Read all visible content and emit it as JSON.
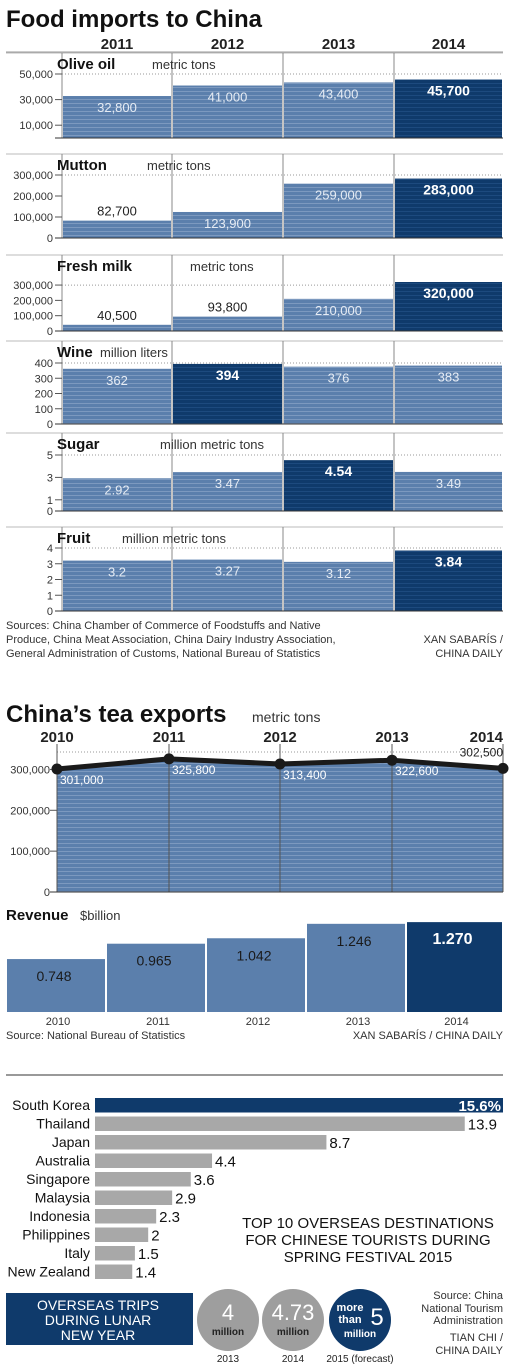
{
  "food": {
    "title": "Food imports to China",
    "years": [
      "2011",
      "2012",
      "2013",
      "2014"
    ],
    "sources": "Sources: China Chamber of Commerce of Foodstuffs and Native Produce, China Meat Association, China Dairy Industry Association, General Administration of Customs, National Bureau of Statistics",
    "credit": "XAN SABARÍS / CHINA DAILY"
  },
  "tea": {
    "title": "China’s tea exports",
    "unit": "metric tons",
    "revenue_title": "Revenue",
    "revenue_unit": "$billion",
    "source": "Source: National Bureau of Statistics",
    "credit": "XAN SABARÍS / CHINA DAILY"
  },
  "tourism": {
    "caption": "TOP 10 OVERSEAS DESTINATIONS FOR CHINESE TOURISTS DURING SPRING FESTIVAL 2015",
    "trips_title": "OVERSEAS TRIPS DURING LUNAR NEW YEAR",
    "circles": [
      {
        "value": "4",
        "unit": "million",
        "year": "2013"
      },
      {
        "value": "4.73",
        "unit": "million",
        "year": "2014"
      },
      {
        "prefix": "more than",
        "value": "5",
        "unit": "million",
        "year": "2015 (forecast)"
      }
    ],
    "source": "Source: China National Tourism Administration",
    "credit": "TIAN CHI / CHINA DAILY"
  },
  "colors": {
    "bar": "#5b7fac",
    "highlight": "#0f3a6b",
    "grey_bar": "#a8a8a8",
    "dark_line": "#1a1a1a"
  },
  "chart_data": [
    {
      "type": "bar",
      "title": "Olive oil",
      "unit": "metric tons",
      "categories": [
        "2011",
        "2012",
        "2013",
        "2014"
      ],
      "values": [
        32800,
        41000,
        43400,
        45700
      ],
      "labels": [
        "32,800",
        "41,000",
        "43,400",
        "45,700"
      ],
      "yticks": [
        10000,
        30000,
        50000
      ],
      "ytick_labels": [
        "10,000",
        "30,000",
        "50,000"
      ],
      "ylim": [
        0,
        50000
      ],
      "highlight": 3
    },
    {
      "type": "bar",
      "title": "Mutton",
      "unit": "metric tons",
      "categories": [
        "2011",
        "2012",
        "2013",
        "2014"
      ],
      "values": [
        82700,
        123900,
        259000,
        283000
      ],
      "labels": [
        "82,700",
        "123,900",
        "259,000",
        "283,000"
      ],
      "yticks": [
        0,
        100000,
        200000,
        300000
      ],
      "ytick_labels": [
        "0",
        "100,000",
        "200,000",
        "300,000"
      ],
      "ylim": [
        0,
        300000
      ],
      "highlight": 3
    },
    {
      "type": "bar",
      "title": "Fresh milk",
      "unit": "metric tons",
      "categories": [
        "2011",
        "2012",
        "2013",
        "2014"
      ],
      "values": [
        40500,
        93800,
        210000,
        320000
      ],
      "labels": [
        "40,500",
        "93,800",
        "210,000",
        "320,000"
      ],
      "yticks": [
        0,
        100000,
        200000,
        300000
      ],
      "ytick_labels": [
        "0",
        "100,000",
        "200,000",
        "300,000"
      ],
      "ylim": [
        0,
        320000
      ],
      "highlight": 3
    },
    {
      "type": "bar",
      "title": "Wine",
      "unit": "million liters",
      "categories": [
        "2011",
        "2012",
        "2013",
        "2014"
      ],
      "values": [
        362,
        394,
        376,
        383
      ],
      "labels": [
        "362",
        "394",
        "376",
        "383"
      ],
      "yticks": [
        0,
        100,
        200,
        300,
        400
      ],
      "ytick_labels": [
        "0",
        "100",
        "200",
        "300",
        "400"
      ],
      "ylim": [
        0,
        400
      ],
      "highlight": 1
    },
    {
      "type": "bar",
      "title": "Sugar",
      "unit": "million metric tons",
      "categories": [
        "2011",
        "2012",
        "2013",
        "2014"
      ],
      "values": [
        2.92,
        3.47,
        4.54,
        3.49
      ],
      "labels": [
        "2.92",
        "3.47",
        "4.54",
        "3.49"
      ],
      "yticks": [
        0,
        1,
        3,
        5
      ],
      "ytick_labels": [
        "0",
        "1",
        "3",
        "5"
      ],
      "ylim": [
        0,
        5
      ],
      "highlight": 2
    },
    {
      "type": "bar",
      "title": "Fruit",
      "unit": "million metric tons",
      "categories": [
        "2011",
        "2012",
        "2013",
        "2014"
      ],
      "values": [
        3.2,
        3.27,
        3.12,
        3.84
      ],
      "labels": [
        "3.2",
        "3.27",
        "3.12",
        "3.84"
      ],
      "yticks": [
        0,
        1,
        2,
        3,
        4
      ],
      "ytick_labels": [
        "0",
        "1",
        "2",
        "3",
        "4"
      ],
      "ylim": [
        0,
        4
      ],
      "highlight": 3
    },
    {
      "type": "area",
      "title": "China’s tea exports",
      "unit": "metric tons",
      "x": [
        "2010",
        "2011",
        "2012",
        "2013",
        "2014"
      ],
      "values": [
        301000,
        325800,
        313400,
        322600,
        302500
      ],
      "labels": [
        "301,000",
        "325,800",
        "313,400",
        "322,600",
        "302,500"
      ],
      "yticks": [
        0,
        100000,
        200000,
        300000
      ],
      "ytick_labels": [
        "0",
        "100,000",
        "200,000",
        "300,000"
      ],
      "ylim": [
        0,
        350000
      ]
    },
    {
      "type": "bar",
      "title": "Revenue",
      "unit": "$billion",
      "categories": [
        "2010",
        "2011",
        "2012",
        "2013",
        "2014"
      ],
      "values": [
        0.748,
        0.965,
        1.042,
        1.246,
        1.27
      ],
      "labels": [
        "0.748",
        "0.965",
        "1.042",
        "1.246",
        "1.270"
      ],
      "highlight": 4
    },
    {
      "type": "bar",
      "orientation": "horizontal",
      "categories": [
        "South Korea",
        "Thailand",
        "Japan",
        "Australia",
        "Singapore",
        "Malaysia",
        "Indonesia",
        "Philippines",
        "Italy",
        "New Zealand"
      ],
      "values": [
        15.6,
        13.9,
        8.7,
        4.4,
        3.6,
        2.9,
        2.3,
        2,
        1.5,
        1.4
      ],
      "labels": [
        "15.6%",
        "13.9",
        "8.7",
        "4.4",
        "3.6",
        "2.9",
        "2.3",
        "2",
        "1.5",
        "1.4"
      ],
      "highlight": 0
    }
  ]
}
